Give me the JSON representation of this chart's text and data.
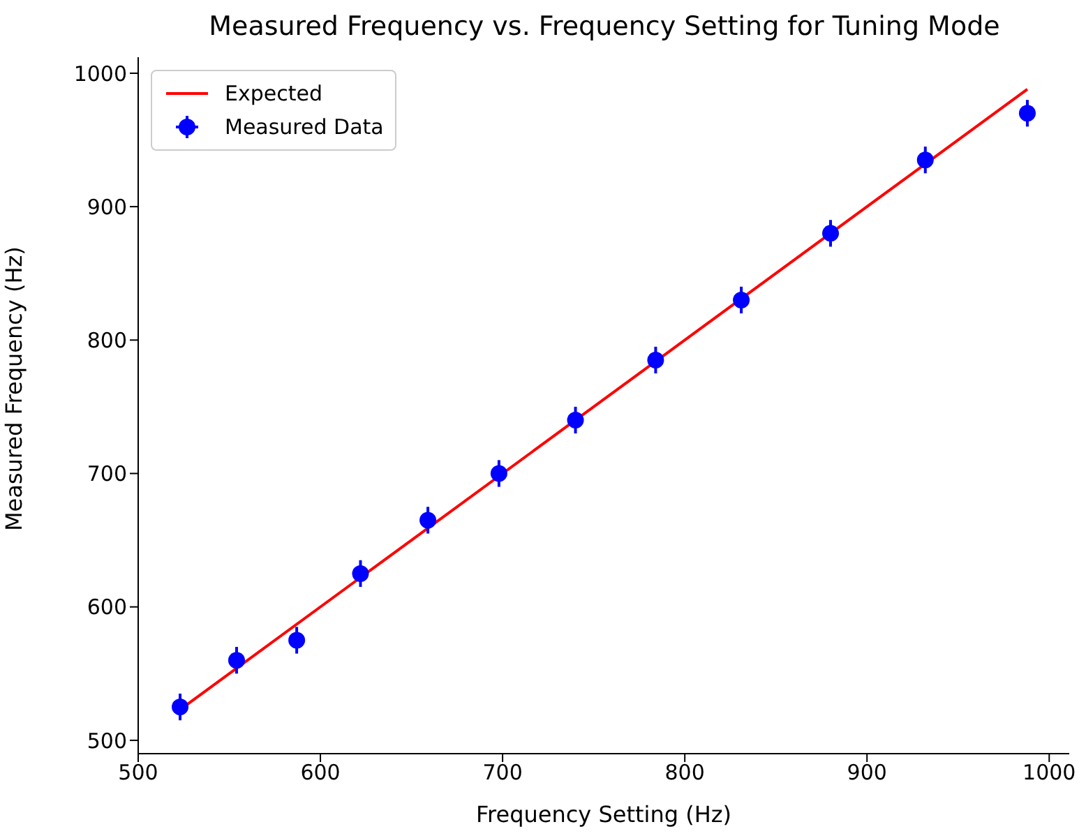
{
  "chart_data": {
    "type": "scatter",
    "title": "Measured Frequency vs. Frequency Setting for Tuning Mode",
    "xlabel": "Frequency Setting (Hz)",
    "ylabel": "Measured Frequency (Hz)",
    "xlim": [
      500,
      1011
    ],
    "xticks": [
      500,
      600,
      700,
      800,
      900,
      1000
    ],
    "ylim": [
      490,
      1012
    ],
    "yticks": [
      500,
      600,
      700,
      800,
      900,
      1000
    ],
    "legend": "top left",
    "series": [
      {
        "name": "Expected",
        "type": "line",
        "color": "#ff0000",
        "line_style": "solid",
        "marker": "none",
        "x": [
          523,
          988
        ],
        "values": [
          523,
          988
        ]
      },
      {
        "name": "Measured Data",
        "color": "#0000ff",
        "marker": "circle",
        "x": [
          523,
          554,
          587,
          622,
          659,
          698,
          740,
          784,
          831,
          880,
          932,
          988
        ],
        "values": [
          525,
          560,
          575,
          625,
          665,
          700,
          740,
          785,
          830,
          880,
          935,
          970
        ],
        "errors": [
          10,
          10,
          10,
          10,
          10,
          10,
          10,
          10,
          10,
          10,
          10,
          10
        ]
      }
    ]
  }
}
